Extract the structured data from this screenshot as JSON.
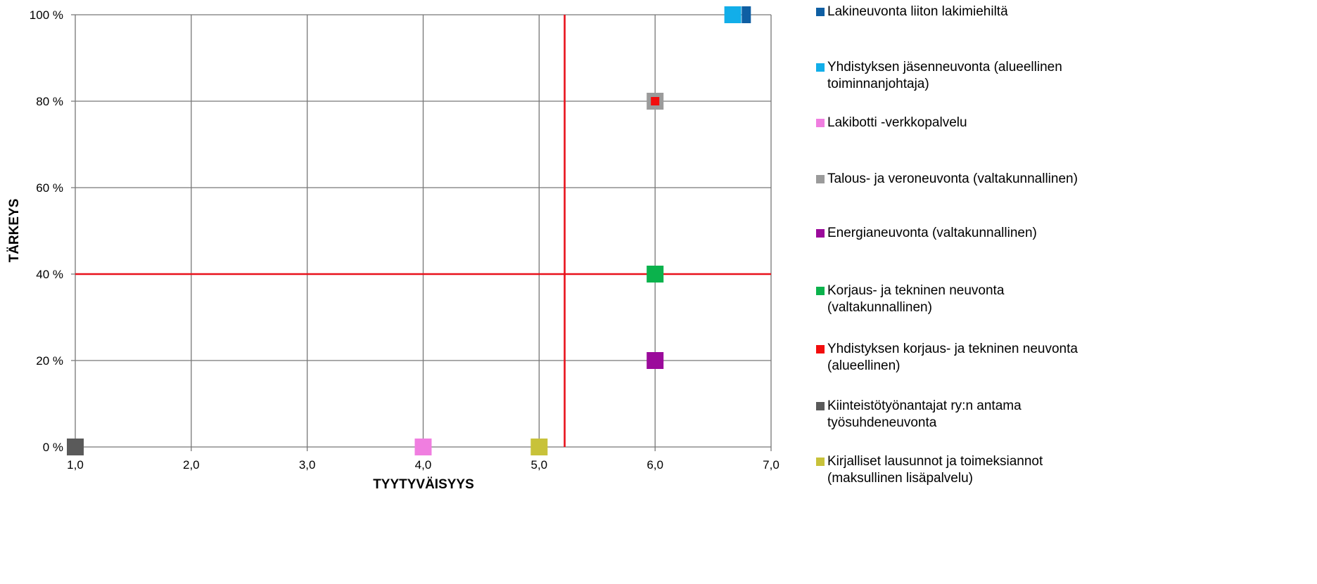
{
  "chart_data": {
    "type": "scatter",
    "xlabel": "TYYTYVÄISYYS",
    "ylabel": "TÄRKEYS",
    "xlim": [
      1.0,
      7.0
    ],
    "ylim": [
      0,
      100
    ],
    "x_ticks": [
      "1,0",
      "2,0",
      "3,0",
      "4,0",
      "5,0",
      "6,0",
      "7,0"
    ],
    "y_ticks": [
      "0 %",
      "20 %",
      "40 %",
      "60 %",
      "80 %",
      "100 %"
    ],
    "grid": true,
    "legend_position": "right",
    "reference_lines": {
      "x": 5.22,
      "y": 40,
      "color": "#e8111b"
    },
    "series": [
      {
        "name": "Lakineuvonta liiton lakimiehiltä",
        "color": "#0f5fa3",
        "x": 6.75,
        "y": 100
      },
      {
        "name": "Yhdistyksen jäsenneuvonta (alueellinen\ntoiminnanjohtaja)",
        "color": "#12aee9",
        "x": 6.67,
        "y": 100
      },
      {
        "name": "Lakibotti -verkkopalvelu",
        "color": "#f07ee0",
        "x": 4.0,
        "y": 0
      },
      {
        "name": "Talous- ja veroneuvonta (valtakunnallinen)",
        "color": "#9b9b9b",
        "x": 6.0,
        "y": 80
      },
      {
        "name": "Energianeuvonta (valtakunnallinen)",
        "color": "#9b0b9b",
        "x": 6.0,
        "y": 20
      },
      {
        "name": "Korjaus- ja tekninen neuvonta\n(valtakunnallinen)",
        "color": "#0bb24c",
        "x": 6.0,
        "y": 40
      },
      {
        "name": "Yhdistyksen korjaus- ja tekninen neuvonta\n(alueellinen)",
        "color": "#f20d0d",
        "x": 6.0,
        "y": 80
      },
      {
        "name": "Kiinteistötyönantajat ry:n antama\ntyösuhdeneuvonta",
        "color": "#5a5a5a",
        "x": 1.0,
        "y": 0
      },
      {
        "name": "Kirjalliset lausunnot ja toimeksiannot\n(maksullinen lisäpalvelu)",
        "color": "#c8c23a",
        "x": 5.0,
        "y": 0
      }
    ]
  }
}
